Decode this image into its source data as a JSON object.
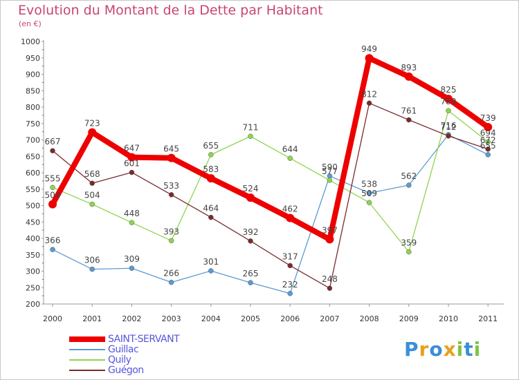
{
  "title": "Evolution du Montant de la Dette par Habitant",
  "unit_label": "(en €)",
  "logo": {
    "text": "Proxiti",
    "letters": [
      {
        "ch": "P",
        "color": "#3b8fd6"
      },
      {
        "ch": "r",
        "color": "#e7a11b"
      },
      {
        "ch": "o",
        "color": "#3b8fd6"
      },
      {
        "ch": "x",
        "color": "#e7a11b"
      },
      {
        "ch": "i",
        "color": "#7dc443"
      },
      {
        "ch": "t",
        "color": "#3b8fd6"
      },
      {
        "ch": "i",
        "color": "#7dc443"
      }
    ]
  },
  "chart_data": {
    "type": "line",
    "x": [
      "2000",
      "2001",
      "2002",
      "2003",
      "2004",
      "2005",
      "2006",
      "2007",
      "2008",
      "2009",
      "2010",
      "2011"
    ],
    "ylim": [
      200,
      1000
    ],
    "yticks": [
      200,
      250,
      300,
      350,
      400,
      450,
      500,
      550,
      600,
      650,
      700,
      750,
      800,
      850,
      900,
      950,
      1000
    ],
    "grid": false,
    "legend_position": "bottom-left",
    "series": [
      {
        "name": "SAINT-SERVANT",
        "color": "#ee0000",
        "values": [
          504,
          723,
          647,
          645,
          583,
          524,
          462,
          397,
          949,
          893,
          825,
          739
        ]
      },
      {
        "name": "Guillac",
        "color": "#5a9bd3",
        "values": [
          366,
          306,
          309,
          266,
          301,
          265,
          232,
          590,
          538,
          562,
          716,
          655
        ]
      },
      {
        "name": "Quily",
        "color": "#8fd44f",
        "values": [
          555,
          504,
          448,
          393,
          655,
          711,
          644,
          577,
          509,
          359,
          789,
          694
        ]
      },
      {
        "name": "Guégon",
        "color": "#7a2a2a",
        "values": [
          667,
          568,
          601,
          533,
          464,
          392,
          317,
          248,
          812,
          761,
          712,
          672
        ]
      }
    ]
  }
}
